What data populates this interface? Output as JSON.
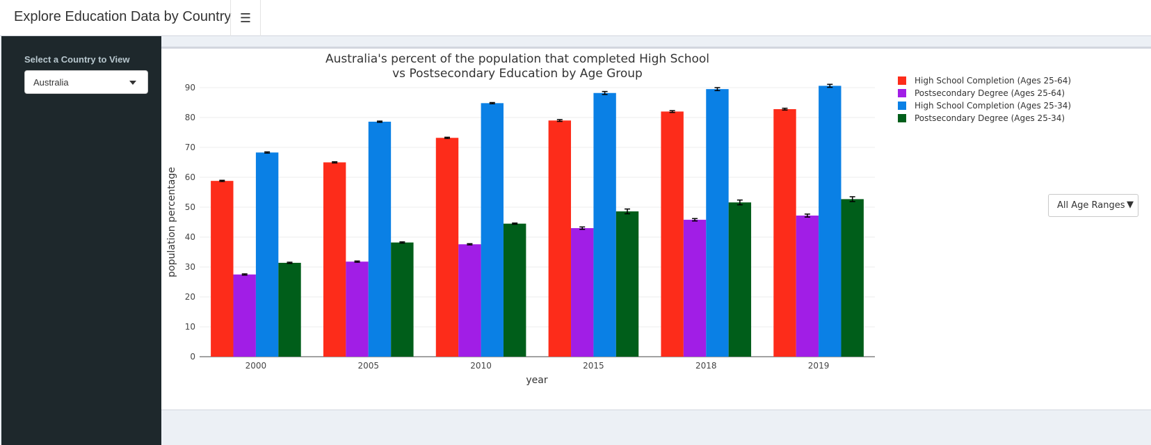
{
  "header": {
    "title": "Explore Education Data by Country",
    "menu_icon": "hamburger-icon"
  },
  "sidebar": {
    "label": "Select a Country to View",
    "selected_country": "Australia"
  },
  "dropdown": {
    "selected": "All Age Ranges",
    "caret": "▼"
  },
  "colors": {
    "hs_25_64": "#fd2c1a",
    "post_25_64": "#a11ee6",
    "hs_25_34": "#0a80e5",
    "post_25_34": "#005e1a"
  },
  "chart_data": {
    "type": "bar",
    "title_line1": "Australia's percent of the population that completed High School",
    "title_line2": "vs Postsecondary Education by Age Group",
    "xlabel": "year",
    "ylabel": "population percentage",
    "ylim": [
      0,
      90
    ],
    "yticks": [
      0,
      10,
      20,
      30,
      40,
      50,
      60,
      70,
      80,
      90
    ],
    "categories": [
      "2000",
      "2005",
      "2010",
      "2015",
      "2018",
      "2019"
    ],
    "legend_position": "top-right",
    "grid": true,
    "series": [
      {
        "name": "High School Completion (Ages 25-64)",
        "color": "#fd2c1a",
        "values": [
          58.8,
          65.0,
          73.2,
          79.0,
          82.0,
          82.8
        ],
        "errors": [
          0.2,
          0.2,
          0.2,
          0.3,
          0.3,
          0.3
        ]
      },
      {
        "name": "Postsecondary Degree (Ages 25-64)",
        "color": "#a11ee6",
        "values": [
          27.5,
          31.8,
          37.6,
          43.0,
          45.8,
          47.2
        ],
        "errors": [
          0.2,
          0.2,
          0.2,
          0.4,
          0.4,
          0.5
        ]
      },
      {
        "name": "High School Completion (Ages 25-34)",
        "color": "#0a80e5",
        "values": [
          68.3,
          78.6,
          84.8,
          88.2,
          89.5,
          90.6
        ],
        "errors": [
          0.2,
          0.2,
          0.2,
          0.5,
          0.5,
          0.5
        ]
      },
      {
        "name": "Postsecondary Degree (Ages 25-34)",
        "color": "#005e1a",
        "values": [
          31.4,
          38.2,
          44.5,
          48.6,
          51.6,
          52.7
        ],
        "errors": [
          0.2,
          0.2,
          0.2,
          0.8,
          0.8,
          0.8
        ]
      }
    ]
  }
}
